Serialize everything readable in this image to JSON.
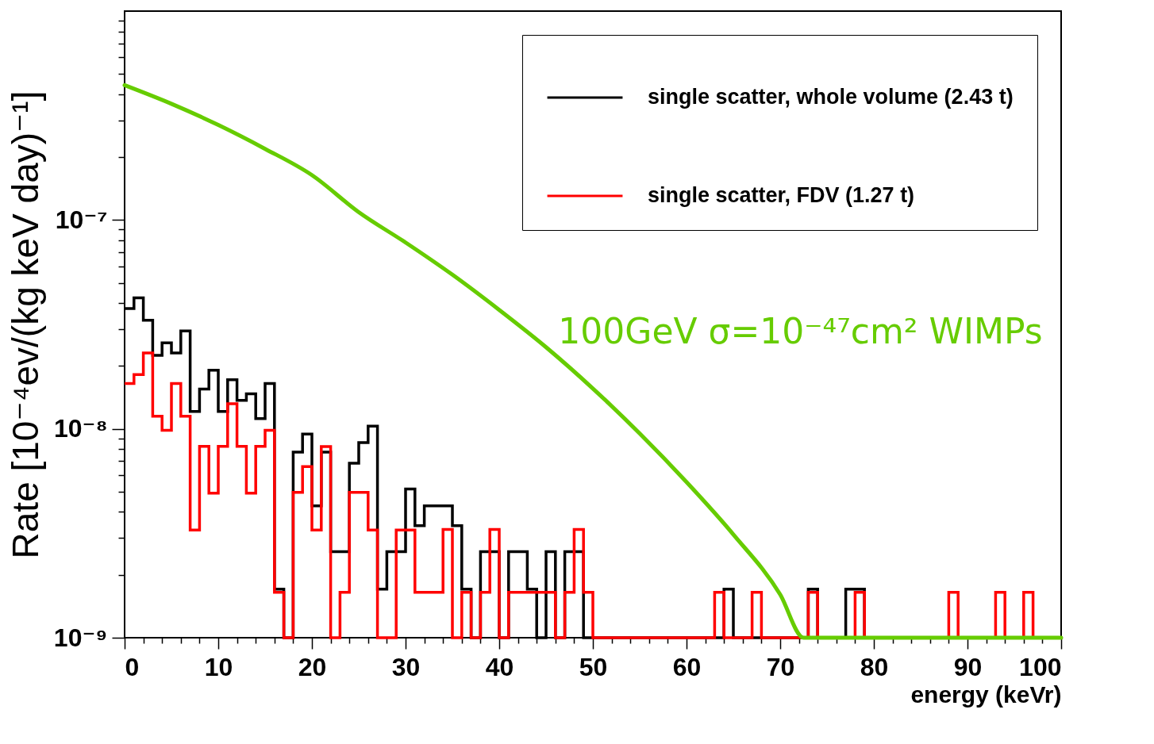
{
  "chart_data": {
    "type": "histogram",
    "xlabel": "energy (keVr)",
    "ylabel": "Rate [10⁻⁴ev/(kg keV day)⁻¹]",
    "bins": [
      0,
      1,
      2,
      3,
      4,
      5,
      6,
      7,
      8,
      9,
      10,
      11,
      12,
      13,
      14,
      15,
      16,
      17,
      18,
      19,
      20,
      21,
      22,
      23,
      24,
      25,
      26,
      27,
      28,
      29,
      30,
      31,
      32,
      33,
      34,
      35,
      36,
      37,
      38,
      39,
      40,
      41,
      42,
      43,
      44,
      45,
      46,
      47,
      48,
      49,
      50,
      51,
      52,
      53,
      54,
      55,
      56,
      57,
      58,
      59,
      60,
      61,
      62,
      63,
      64,
      65,
      66,
      67,
      68,
      69,
      70,
      71,
      72,
      73,
      74,
      75,
      76,
      77,
      78,
      79,
      80,
      81,
      82,
      83,
      84,
      85,
      86,
      87,
      88,
      89,
      90,
      91,
      92,
      93,
      94,
      95,
      96,
      97,
      98,
      99,
      100
    ],
    "series": [
      {
        "name": "single scatter, whole volume (2.43 t)",
        "color": "#000000",
        "values": [
          3.77e-08,
          4.24e-08,
          3.31e-08,
          2.25e-08,
          2.58e-08,
          2.31e-08,
          2.94e-08,
          1.21e-08,
          1.55e-08,
          1.91e-08,
          1.21e-08,
          1.72e-08,
          1.37e-08,
          1.47e-08,
          1.12e-08,
          1.65e-08,
          1.71e-09,
          1e-09,
          7.74e-09,
          9.44e-09,
          4.28e-09,
          7.74e-09,
          2.58e-09,
          2.58e-09,
          6.84e-09,
          8.59e-09,
          1.03e-08,
          1.71e-09,
          2.58e-09,
          2.58e-09,
          5.15e-09,
          3.44e-09,
          4.28e-09,
          4.28e-09,
          4.28e-09,
          3.44e-09,
          1.71e-09,
          1e-09,
          2.58e-09,
          2.58e-09,
          1e-09,
          2.58e-09,
          2.58e-09,
          1.71e-09,
          1e-09,
          2.58e-09,
          1e-09,
          2.58e-09,
          2.58e-09,
          1e-09,
          1e-09,
          1e-09,
          1e-09,
          1e-09,
          1e-09,
          1e-09,
          1e-09,
          1e-09,
          1e-09,
          1e-09,
          1e-09,
          1e-09,
          1e-09,
          1e-09,
          1.71e-09,
          1e-09,
          1e-09,
          1e-09,
          1e-09,
          1e-09,
          1e-09,
          1e-09,
          1e-09,
          1.71e-09,
          1e-09,
          1e-09,
          1e-09,
          1.71e-09,
          1.71e-09,
          1e-09,
          1e-09,
          1e-09,
          1e-09,
          1e-09,
          1e-09,
          1e-09,
          1e-09,
          1e-09,
          1e-09,
          1e-09,
          1e-09,
          1e-09,
          1e-09,
          1e-09,
          1e-09,
          1e-09,
          1e-09,
          1e-09,
          1e-09,
          1e-09
        ]
      },
      {
        "name": "single scatter, FDV (1.27 t)",
        "color": "#ff0000",
        "values": [
          1.65e-08,
          1.82e-08,
          2.31e-08,
          1.15e-08,
          9.84e-09,
          1.65e-08,
          1.15e-08,
          3.28e-09,
          8.25e-09,
          4.92e-09,
          8.25e-09,
          1.32e-08,
          8.25e-09,
          4.92e-09,
          8.25e-09,
          9.84e-09,
          1.65e-09,
          1e-09,
          4.96e-09,
          6.6e-09,
          3.28e-09,
          8.22e-09,
          1e-09,
          1.65e-09,
          4.96e-09,
          4.96e-09,
          3.28e-09,
          1e-09,
          1e-09,
          3.28e-09,
          3.28e-09,
          1.65e-09,
          1.65e-09,
          1.65e-09,
          3.3e-09,
          1e-09,
          1.65e-09,
          1e-09,
          1.65e-09,
          3.3e-09,
          1e-09,
          1.65e-09,
          1.65e-09,
          1.65e-09,
          1.65e-09,
          1.65e-09,
          1e-09,
          1.65e-09,
          3.3e-09,
          1.65e-09,
          1e-09,
          1e-09,
          1e-09,
          1e-09,
          1e-09,
          1e-09,
          1e-09,
          1e-09,
          1e-09,
          1e-09,
          1e-09,
          1e-09,
          1e-09,
          1.65e-09,
          1e-09,
          1e-09,
          1e-09,
          1.65e-09,
          1e-09,
          1e-09,
          1e-09,
          1e-09,
          1e-09,
          1.65e-09,
          1e-09,
          1e-09,
          1e-09,
          1e-09,
          1.65e-09,
          1e-09,
          1e-09,
          1e-09,
          1e-09,
          1e-09,
          1e-09,
          1e-09,
          1e-09,
          1e-09,
          1.65e-09,
          1e-09,
          1e-09,
          1e-09,
          1e-09,
          1.65e-09,
          1e-09,
          1e-09,
          1.65e-09,
          1e-09,
          1e-09,
          1e-09
        ]
      },
      {
        "name": "100GeV σ=10⁻⁴⁷cm² WIMPs",
        "type": "line",
        "color": "#66cc00",
        "x": [
          0,
          5,
          10,
          15,
          20,
          25,
          30,
          35,
          40,
          45,
          50,
          55,
          60,
          65,
          70,
          72.5,
          100
        ],
        "values": [
          4.42e-07,
          3.6e-07,
          2.85e-07,
          2.19e-07,
          1.64e-07,
          1.09e-07,
          7.8e-08,
          5.47e-08,
          3.71e-08,
          2.46e-08,
          1.56e-08,
          9.5e-09,
          5.56e-09,
          3.12e-09,
          1.61e-09,
          1e-09,
          1e-09
        ]
      }
    ],
    "log": "y",
    "xlim": [
      0,
      100
    ],
    "ylim": [
      1e-09,
      1e-06
    ],
    "xticks": [
      0,
      {
        "value": 2,
        "label": null
      },
      {
        "value": 4,
        "label": null
      },
      {
        "value": 6,
        "label": null
      },
      {
        "value": 8,
        "label": null
      },
      10,
      {
        "value": 12,
        "label": null
      },
      {
        "value": 14,
        "label": null
      },
      {
        "value": 16,
        "label": null
      },
      {
        "value": 18,
        "label": null
      },
      20,
      {
        "value": 22,
        "label": null
      },
      {
        "value": 24,
        "label": null
      },
      {
        "value": 26,
        "label": null
      },
      {
        "value": 28,
        "label": null
      },
      30,
      {
        "value": 32,
        "label": null
      },
      {
        "value": 34,
        "label": null
      },
      {
        "value": 36,
        "label": null
      },
      {
        "value": 38,
        "label": null
      },
      40,
      {
        "value": 42,
        "label": null
      },
      {
        "value": 44,
        "label": null
      },
      {
        "value": 46,
        "label": null
      },
      {
        "value": 48,
        "label": null
      },
      50,
      {
        "value": 52,
        "label": null
      },
      {
        "value": 54,
        "label": null
      },
      {
        "value": 56,
        "label": null
      },
      {
        "value": 58,
        "label": null
      },
      60,
      {
        "value": 62,
        "label": null
      },
      {
        "value": 64,
        "label": null
      },
      {
        "value": 66,
        "label": null
      },
      {
        "value": 68,
        "label": null
      },
      70,
      {
        "value": 72,
        "label": null
      },
      {
        "value": 74,
        "label": null
      },
      {
        "value": 76,
        "label": null
      },
      {
        "value": 78,
        "label": null
      },
      80,
      {
        "value": 82,
        "label": null
      },
      {
        "value": 84,
        "label": null
      },
      {
        "value": 86,
        "label": null
      },
      {
        "value": 88,
        "label": null
      },
      90,
      {
        "value": 92,
        "label": null
      },
      {
        "value": 94,
        "label": null
      },
      {
        "value": 96,
        "label": null
      },
      {
        "value": 98,
        "label": null
      },
      100
    ],
    "yticks": [
      {
        "value": 1e-09,
        "label": "10⁻⁹"
      },
      {
        "value": 2e-09,
        "label": null
      },
      {
        "value": 3e-09,
        "label": null
      },
      {
        "value": 4e-09,
        "label": null
      },
      {
        "value": 5e-09,
        "label": null
      },
      {
        "value": 6e-09,
        "label": null
      },
      {
        "value": 7e-09,
        "label": null
      },
      {
        "value": 8e-09,
        "label": null
      },
      {
        "value": 9e-09,
        "label": null
      },
      {
        "value": 1e-08,
        "label": "10⁻⁸"
      },
      {
        "value": 2e-08,
        "label": null
      },
      {
        "value": 3e-08,
        "label": null
      },
      {
        "value": 4e-08,
        "label": null
      },
      {
        "value": 5e-08,
        "label": null
      },
      {
        "value": 6e-08,
        "label": null
      },
      {
        "value": 7e-08,
        "label": null
      },
      {
        "value": 8e-08,
        "label": null
      },
      {
        "value": 9e-08,
        "label": null
      },
      {
        "value": 1e-07,
        "label": "10⁻⁷"
      },
      {
        "value": 2e-07,
        "label": null
      },
      {
        "value": 3e-07,
        "label": null
      },
      {
        "value": 4e-07,
        "label": null
      },
      {
        "value": 5e-07,
        "label": null
      },
      {
        "value": 6e-07,
        "label": null
      },
      {
        "value": 7e-07,
        "label": null
      },
      {
        "value": 8e-07,
        "label": null
      },
      {
        "value": 9e-07,
        "label": null
      }
    ],
    "grid": false,
    "legend": "top right"
  }
}
